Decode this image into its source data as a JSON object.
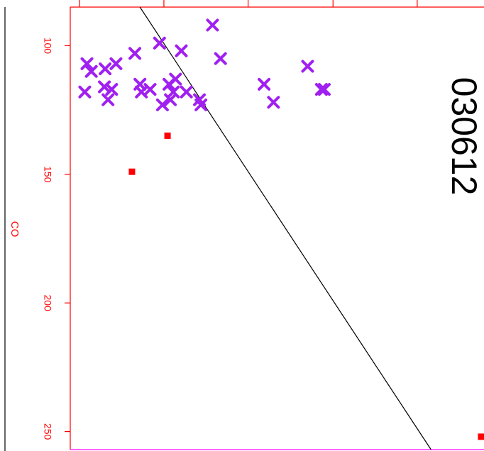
{
  "chart_data": {
    "type": "scatter",
    "title": "030612",
    "ylabel": "CO",
    "xlabel": "",
    "orientation": "rotated-90",
    "y_axis": {
      "range": [
        85,
        257
      ],
      "ticks": [
        100,
        150,
        200,
        250
      ],
      "tick_labels": [
        "100",
        "150",
        "200",
        "250"
      ]
    },
    "x_axis": {
      "range": [
        0,
        570
      ],
      "ticks": [
        13,
        129,
        245,
        362,
        478
      ],
      "tick_labels": []
    },
    "grid": false,
    "legend": "none",
    "series": [
      {
        "marker": "cross",
        "color": "#a020f0",
        "points": [
          [
            196,
            92
          ],
          [
            23,
            107
          ],
          [
            63,
            107
          ],
          [
            29,
            110
          ],
          [
            48,
            109
          ],
          [
            123,
            99
          ],
          [
            89,
            103
          ],
          [
            153,
            102
          ],
          [
            207,
            105
          ],
          [
            327,
            108
          ],
          [
            20,
            118
          ],
          [
            47,
            116
          ],
          [
            57,
            117
          ],
          [
            52,
            121
          ],
          [
            96,
            115
          ],
          [
            110,
            117
          ],
          [
            98,
            118
          ],
          [
            136,
            115
          ],
          [
            142,
            118
          ],
          [
            138,
            121
          ],
          [
            127,
            123
          ],
          [
            160,
            118
          ],
          [
            178,
            121
          ],
          [
            180,
            123
          ],
          [
            145,
            113
          ],
          [
            267,
            115
          ],
          [
            280,
            122
          ],
          [
            346,
            117
          ],
          [
            350,
            117
          ]
        ]
      },
      {
        "marker": "square",
        "color": "#ff0000",
        "points": [
          [
            134,
            135
          ],
          [
            85,
            149
          ],
          [
            566,
            252
          ]
        ]
      }
    ],
    "line": {
      "points": [
        [
          96,
          85
        ],
        [
          497,
          257
        ]
      ],
      "color": "#000000"
    },
    "colors": {
      "axis": "#ff0000",
      "frame": "#ff0000",
      "bottom_edge": "#ff00ff",
      "line": "#000000",
      "title": "#000000"
    }
  }
}
